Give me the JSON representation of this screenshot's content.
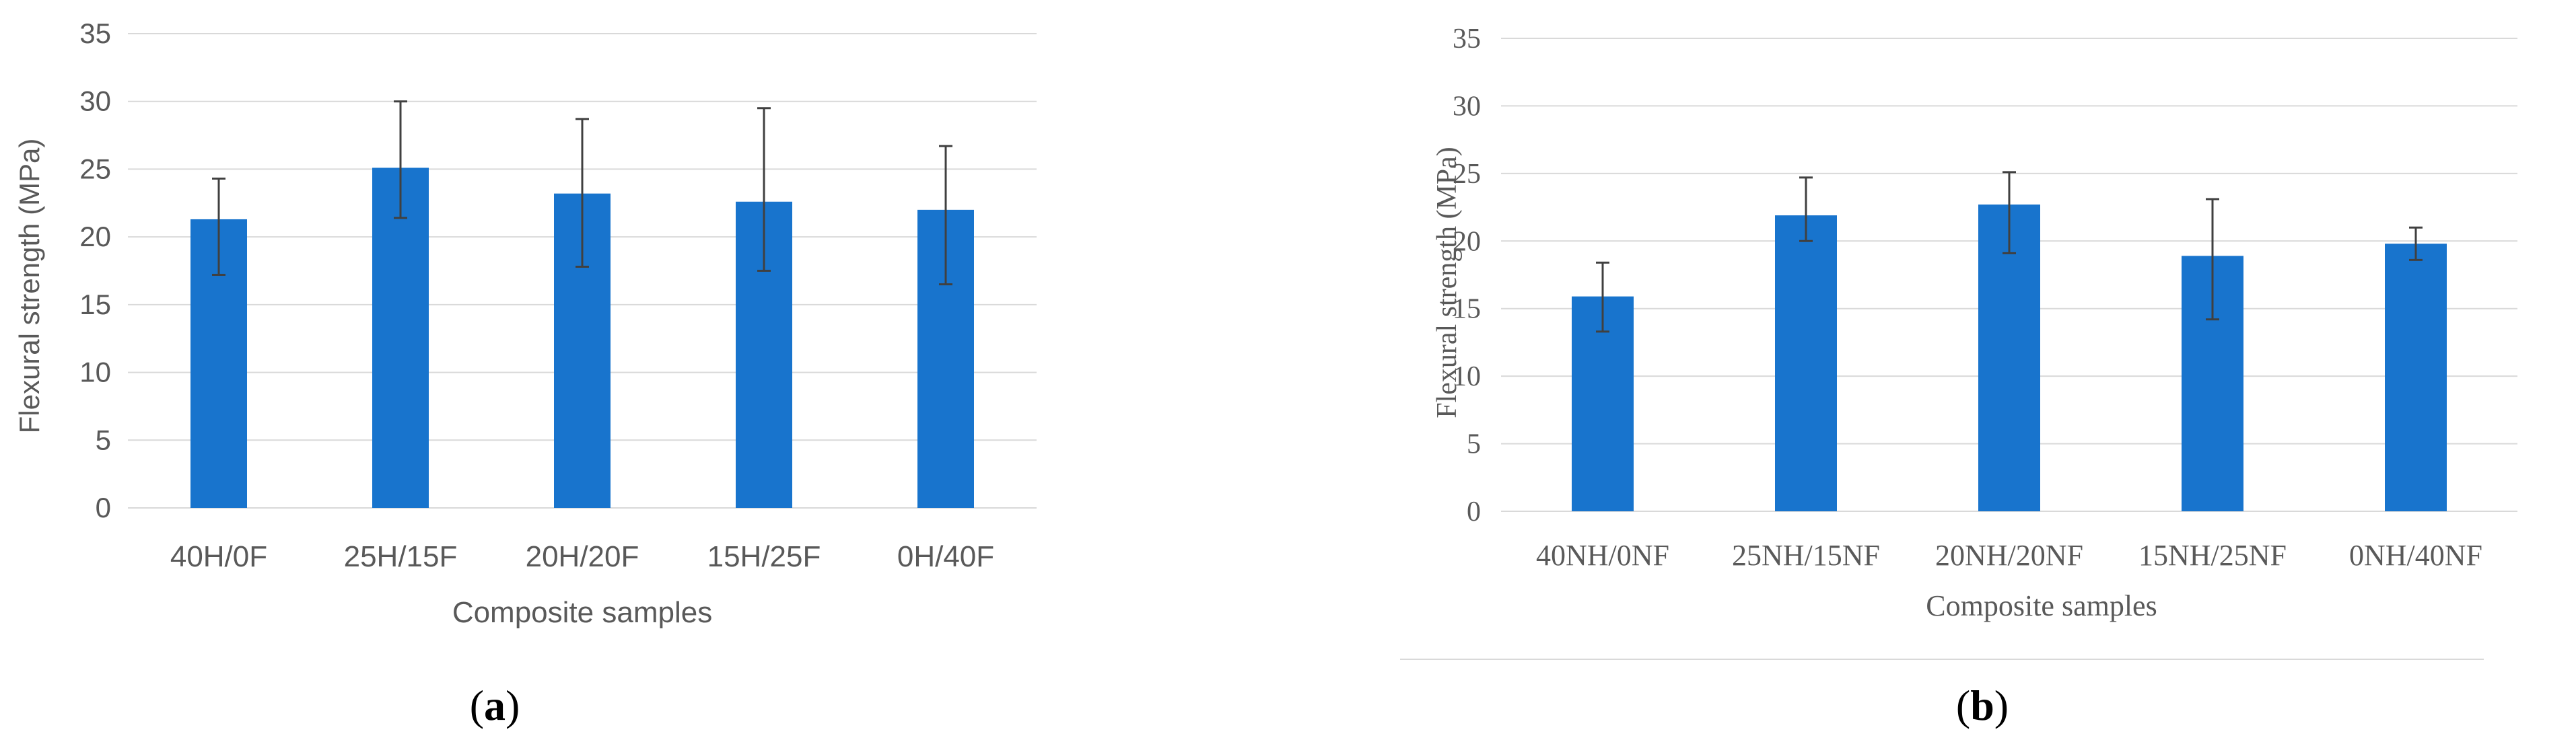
{
  "colors": {
    "bar": "#1874cd",
    "grid": "#d9d9d9",
    "axis_text": "#595959",
    "error_bar": "#404040",
    "caption": "#000000"
  },
  "chart_data": [
    {
      "type": "bar",
      "caption": "(a)",
      "caption_letter": "a",
      "xlabel": "Composite samples",
      "ylabel": "Flexural strength (MPa)",
      "ylim": [
        0,
        35
      ],
      "yticks": [
        0,
        5,
        10,
        15,
        20,
        25,
        30,
        35
      ],
      "grid": true,
      "categories": [
        "40H/0F",
        "25H/15F",
        "20H/20F",
        "15H/25F",
        "0H/40F"
      ],
      "values": [
        21.3,
        25.1,
        23.2,
        22.6,
        22.0
      ],
      "error_low": [
        17.2,
        21.4,
        17.8,
        17.5,
        16.5
      ],
      "error_high": [
        24.3,
        30.0,
        28.7,
        29.5,
        26.7
      ]
    },
    {
      "type": "bar",
      "caption": "(b)",
      "caption_letter": "b",
      "xlabel": "Composite samples",
      "ylabel": "Flexural strength (MPa)",
      "ylim": [
        0,
        35
      ],
      "yticks": [
        0,
        5,
        10,
        15,
        20,
        25,
        30,
        35
      ],
      "grid": true,
      "categories": [
        "40NH/0NF",
        "25NH/15NF",
        "20NH/20NF",
        "15NH/25NF",
        "0NH/40NF"
      ],
      "values": [
        15.9,
        21.9,
        22.7,
        18.9,
        19.8
      ],
      "error_low": [
        13.3,
        20.0,
        19.1,
        14.2,
        18.6
      ],
      "error_high": [
        18.4,
        24.7,
        25.1,
        23.1,
        21.0
      ]
    }
  ]
}
